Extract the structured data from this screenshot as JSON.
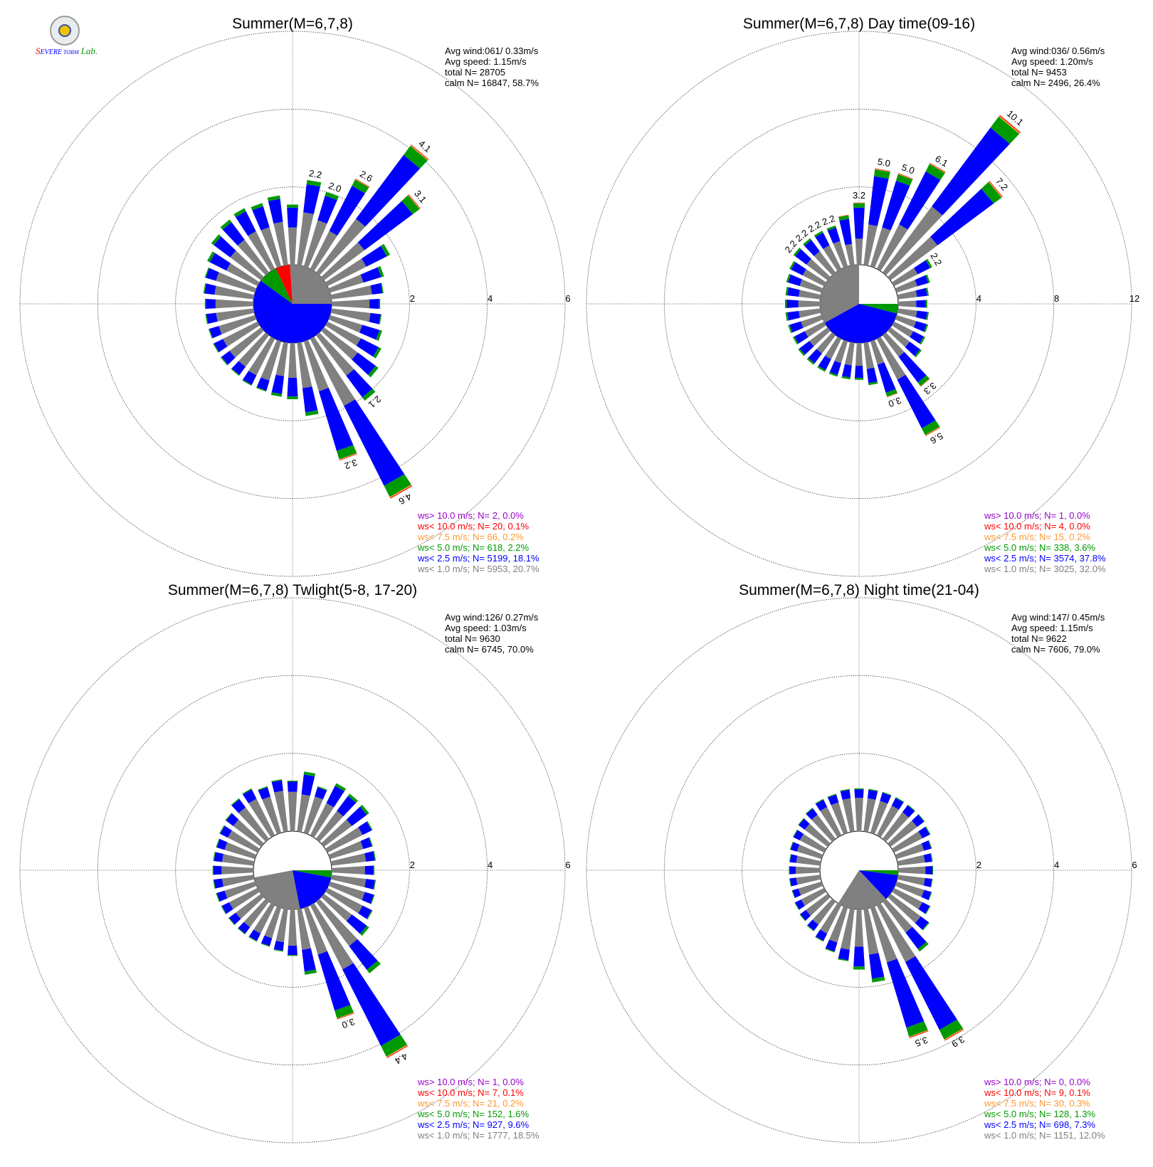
{
  "logo": {
    "text_s": "S",
    "text_severe": "EVERE",
    "text_storm": "TORM",
    "text_lab": "Lab."
  },
  "chart_data": [
    {
      "type": "polar-stacked-bar",
      "title": "Summer(M=6,7,8)",
      "rmax": 6,
      "rticks": [
        2,
        4,
        6
      ],
      "stats": [
        "Avg wind:061/ 0.33m/s",
        "Avg speed: 1.15m/s",
        "total N=      28705",
        "calm N=  16847,  58.7%"
      ],
      "calm_pie": [
        [
          0,
          0.6,
          "#0000ff"
        ],
        [
          0.6,
          0.68,
          "#009900"
        ],
        [
          0.68,
          0.74,
          "#ff0000"
        ],
        [
          0.74,
          1.0,
          "#808080"
        ]
      ],
      "sectors": [
        {
          "dir": 0,
          "total": 1.55,
          "labeled": false
        },
        {
          "dir": 10,
          "total": 2.2,
          "labeled": true
        },
        {
          "dir": 20,
          "total": 2.0,
          "labeled": true
        },
        {
          "dir": 30,
          "total": 2.6,
          "labeled": true
        },
        {
          "dir": 40,
          "total": 4.1,
          "labeled": true
        },
        {
          "dir": 50,
          "total": 3.1,
          "labeled": true
        },
        {
          "dir": 60,
          "total": 1.8,
          "labeled": false
        },
        {
          "dir": 70,
          "total": 1.45,
          "labeled": false
        },
        {
          "dir": 80,
          "total": 1.35,
          "labeled": false
        },
        {
          "dir": 90,
          "total": 1.25,
          "labeled": false
        },
        {
          "dir": 100,
          "total": 1.3,
          "labeled": false
        },
        {
          "dir": 110,
          "total": 1.4,
          "labeled": false
        },
        {
          "dir": 120,
          "total": 1.55,
          "labeled": false
        },
        {
          "dir": 130,
          "total": 1.75,
          "labeled": false
        },
        {
          "dir": 140,
          "total": 2.1,
          "labeled": true
        },
        {
          "dir": 150,
          "total": 4.6,
          "labeled": true
        },
        {
          "dir": 160,
          "total": 3.2,
          "labeled": true
        },
        {
          "dir": 170,
          "total": 1.9,
          "labeled": false
        },
        {
          "dir": 180,
          "total": 1.45,
          "labeled": false
        },
        {
          "dir": 190,
          "total": 1.4,
          "labeled": false
        },
        {
          "dir": 200,
          "total": 1.35,
          "labeled": false
        },
        {
          "dir": 210,
          "total": 1.35,
          "labeled": false
        },
        {
          "dir": 220,
          "total": 1.3,
          "labeled": false
        },
        {
          "dir": 230,
          "total": 1.3,
          "labeled": false
        },
        {
          "dir": 240,
          "total": 1.28,
          "labeled": false
        },
        {
          "dir": 250,
          "total": 1.25,
          "labeled": false
        },
        {
          "dir": 260,
          "total": 1.25,
          "labeled": false
        },
        {
          "dir": 270,
          "total": 1.25,
          "labeled": false
        },
        {
          "dir": 280,
          "total": 1.3,
          "labeled": false
        },
        {
          "dir": 290,
          "total": 1.35,
          "labeled": false
        },
        {
          "dir": 300,
          "total": 1.45,
          "labeled": false
        },
        {
          "dir": 310,
          "total": 1.6,
          "labeled": false
        },
        {
          "dir": 320,
          "total": 1.7,
          "labeled": false
        },
        {
          "dir": 330,
          "total": 1.75,
          "labeled": false
        },
        {
          "dir": 340,
          "total": 1.7,
          "labeled": false
        },
        {
          "dir": 350,
          "total": 1.8,
          "labeled": false
        }
      ],
      "legend": [
        {
          "text": "ws> 10.0 m/s; N=     2,  0.0%",
          "color": "#9900cc"
        },
        {
          "text": "ws< 10.0 m/s; N=    20,  0.1%",
          "color": "#ff0000"
        },
        {
          "text": "ws<  7.5 m/s; N=    66,  0.2%",
          "color": "#ff9933"
        },
        {
          "text": "ws<  5.0 m/s; N=   618,  2.2%",
          "color": "#009900"
        },
        {
          "text": "ws<  2.5 m/s; N=  5199, 18.1%",
          "color": "#0000ff"
        },
        {
          "text": "ws<  1.0 m/s; N=  5953, 20.7%",
          "color": "#808080"
        }
      ]
    },
    {
      "type": "polar-stacked-bar",
      "title": "Summer(M=6,7,8) Day time(09-16)",
      "rmax": 12,
      "rticks": [
        4,
        8,
        12
      ],
      "stats": [
        "Avg wind:036/ 0.56m/s",
        "Avg speed: 1.20m/s",
        "total N=       9453",
        "calm N=   2496,  26.4%"
      ],
      "calm_pie": [
        [
          0,
          0.04,
          "#009900"
        ],
        [
          0.04,
          0.42,
          "#0000ff"
        ],
        [
          0.42,
          0.75,
          "#808080"
        ],
        [
          0.75,
          1.0,
          "#ffffff"
        ]
      ],
      "sectors": [
        {
          "dir": 0,
          "total": 3.2,
          "labeled": true
        },
        {
          "dir": 10,
          "total": 5.0,
          "labeled": true
        },
        {
          "dir": 20,
          "total": 5.0,
          "labeled": true
        },
        {
          "dir": 30,
          "total": 6.1,
          "labeled": true
        },
        {
          "dir": 40,
          "total": 10.1,
          "labeled": true
        },
        {
          "dir": 50,
          "total": 7.2,
          "labeled": true
        },
        {
          "dir": 60,
          "total": 2.2,
          "labeled": true
        },
        {
          "dir": 70,
          "total": 1.8,
          "labeled": false
        },
        {
          "dir": 80,
          "total": 1.6,
          "labeled": false
        },
        {
          "dir": 90,
          "total": 1.5,
          "labeled": false
        },
        {
          "dir": 100,
          "total": 1.6,
          "labeled": false
        },
        {
          "dir": 110,
          "total": 1.7,
          "labeled": false
        },
        {
          "dir": 120,
          "total": 1.8,
          "labeled": false
        },
        {
          "dir": 130,
          "total": 2.0,
          "labeled": false
        },
        {
          "dir": 140,
          "total": 3.3,
          "labeled": true
        },
        {
          "dir": 150,
          "total": 5.6,
          "labeled": true
        },
        {
          "dir": 160,
          "total": 3.0,
          "labeled": true
        },
        {
          "dir": 170,
          "total": 2.2,
          "labeled": false
        },
        {
          "dir": 180,
          "total": 1.9,
          "labeled": false
        },
        {
          "dir": 190,
          "total": 1.9,
          "labeled": false
        },
        {
          "dir": 200,
          "total": 1.9,
          "labeled": false
        },
        {
          "dir": 210,
          "total": 1.9,
          "labeled": false
        },
        {
          "dir": 220,
          "total": 1.9,
          "labeled": false
        },
        {
          "dir": 230,
          "total": 1.9,
          "labeled": false
        },
        {
          "dir": 240,
          "total": 1.8,
          "labeled": false
        },
        {
          "dir": 250,
          "total": 1.8,
          "labeled": false
        },
        {
          "dir": 260,
          "total": 1.8,
          "labeled": false
        },
        {
          "dir": 270,
          "total": 1.8,
          "labeled": false
        },
        {
          "dir": 280,
          "total": 1.8,
          "labeled": false
        },
        {
          "dir": 290,
          "total": 1.9,
          "labeled": false
        },
        {
          "dir": 300,
          "total": 2.0,
          "labeled": false
        },
        {
          "dir": 310,
          "total": 2.2,
          "labeled": true
        },
        {
          "dir": 320,
          "total": 2.2,
          "labeled": true
        },
        {
          "dir": 330,
          "total": 2.2,
          "labeled": true
        },
        {
          "dir": 340,
          "total": 2.2,
          "labeled": true
        },
        {
          "dir": 350,
          "total": 2.6,
          "labeled": false
        }
      ],
      "legend": [
        {
          "text": "ws> 10.0 m/s; N=     1,  0.0%",
          "color": "#9900cc"
        },
        {
          "text": "ws< 10.0 m/s; N=     4,  0.0%",
          "color": "#ff0000"
        },
        {
          "text": "ws<  7.5 m/s; N=    15,  0.2%",
          "color": "#ff9933"
        },
        {
          "text": "ws<  5.0 m/s; N=   338,  3.6%",
          "color": "#009900"
        },
        {
          "text": "ws<  2.5 m/s; N=  3574, 37.8%",
          "color": "#0000ff"
        },
        {
          "text": "ws<  1.0 m/s; N=  3025, 32.0%",
          "color": "#808080"
        }
      ]
    },
    {
      "type": "polar-stacked-bar",
      "title": "Summer(M=6,7,8) Twlight(5-8, 17-20)",
      "rmax": 6,
      "rticks": [
        2,
        4,
        6
      ],
      "stats": [
        "Avg wind:126/ 0.27m/s",
        "Avg speed: 1.03m/s",
        "total N=       9630",
        "calm N=   6745,  70.0%"
      ],
      "calm_pie": [
        [
          0,
          0.03,
          "#009900"
        ],
        [
          0.03,
          0.22,
          "#0000ff"
        ],
        [
          0.22,
          0.47,
          "#808080"
        ],
        [
          0.47,
          1.0,
          "#ffffff"
        ]
      ],
      "sectors": [
        {
          "dir": 0,
          "total": 1.3,
          "labeled": false
        },
        {
          "dir": 10,
          "total": 1.55,
          "labeled": false
        },
        {
          "dir": 20,
          "total": 1.25,
          "labeled": false
        },
        {
          "dir": 30,
          "total": 1.5,
          "labeled": false
        },
        {
          "dir": 40,
          "total": 1.45,
          "labeled": false
        },
        {
          "dir": 50,
          "total": 1.45,
          "labeled": false
        },
        {
          "dir": 60,
          "total": 1.3,
          "labeled": false
        },
        {
          "dir": 70,
          "total": 1.15,
          "labeled": false
        },
        {
          "dir": 80,
          "total": 1.15,
          "labeled": false
        },
        {
          "dir": 90,
          "total": 1.1,
          "labeled": false
        },
        {
          "dir": 100,
          "total": 1.15,
          "labeled": false
        },
        {
          "dir": 110,
          "total": 1.2,
          "labeled": false
        },
        {
          "dir": 120,
          "total": 1.3,
          "labeled": false
        },
        {
          "dir": 130,
          "total": 1.45,
          "labeled": false
        },
        {
          "dir": 140,
          "total": 2.3,
          "labeled": false
        },
        {
          "dir": 150,
          "total": 4.4,
          "labeled": true
        },
        {
          "dir": 160,
          "total": 3.0,
          "labeled": true
        },
        {
          "dir": 170,
          "total": 1.7,
          "labeled": false
        },
        {
          "dir": 180,
          "total": 1.2,
          "labeled": false
        },
        {
          "dir": 190,
          "total": 1.1,
          "labeled": false
        },
        {
          "dir": 200,
          "total": 1.05,
          "labeled": false
        },
        {
          "dir": 210,
          "total": 1.05,
          "labeled": false
        },
        {
          "dir": 220,
          "total": 1.05,
          "labeled": false
        },
        {
          "dir": 230,
          "total": 1.05,
          "labeled": false
        },
        {
          "dir": 240,
          "total": 1.05,
          "labeled": false
        },
        {
          "dir": 250,
          "total": 1.05,
          "labeled": false
        },
        {
          "dir": 260,
          "total": 1.05,
          "labeled": false
        },
        {
          "dir": 270,
          "total": 1.05,
          "labeled": false
        },
        {
          "dir": 280,
          "total": 1.05,
          "labeled": false
        },
        {
          "dir": 290,
          "total": 1.05,
          "labeled": false
        },
        {
          "dir": 300,
          "total": 1.1,
          "labeled": false
        },
        {
          "dir": 310,
          "total": 1.15,
          "labeled": false
        },
        {
          "dir": 320,
          "total": 1.3,
          "labeled": false
        },
        {
          "dir": 330,
          "total": 1.35,
          "labeled": false
        },
        {
          "dir": 340,
          "total": 1.25,
          "labeled": false
        },
        {
          "dir": 350,
          "total": 1.35,
          "labeled": false
        }
      ],
      "legend": [
        {
          "text": "ws> 10.0 m/s; N=     1,  0.0%",
          "color": "#9900cc"
        },
        {
          "text": "ws< 10.0 m/s; N=     7,  0.1%",
          "color": "#ff0000"
        },
        {
          "text": "ws<  7.5 m/s; N=    21,  0.2%",
          "color": "#ff9933"
        },
        {
          "text": "ws<  5.0 m/s; N=   152,  1.6%",
          "color": "#009900"
        },
        {
          "text": "ws<  2.5 m/s; N=   927,  9.6%",
          "color": "#0000ff"
        },
        {
          "text": "ws<  1.0 m/s; N=  1777, 18.5%",
          "color": "#808080"
        }
      ]
    },
    {
      "type": "polar-stacked-bar",
      "title": "Summer(M=6,7,8) Night time(21-04)",
      "rmax": 6,
      "rticks": [
        2,
        4,
        6
      ],
      "stats": [
        "Avg wind:147/ 0.45m/s",
        "Avg speed: 1.15m/s",
        "total N=       9622",
        "calm N=   7606,  79.0%"
      ],
      "calm_pie": [
        [
          0,
          0.02,
          "#009900"
        ],
        [
          0.02,
          0.13,
          "#0000ff"
        ],
        [
          0.13,
          0.34,
          "#808080"
        ],
        [
          0.34,
          1.0,
          "#ffffff"
        ]
      ],
      "sectors": [
        {
          "dir": 0,
          "total": 1.1,
          "labeled": false
        },
        {
          "dir": 10,
          "total": 1.1,
          "labeled": false
        },
        {
          "dir": 20,
          "total": 1.1,
          "labeled": false
        },
        {
          "dir": 30,
          "total": 1.1,
          "labeled": false
        },
        {
          "dir": 40,
          "total": 1.1,
          "labeled": false
        },
        {
          "dir": 50,
          "total": 1.1,
          "labeled": false
        },
        {
          "dir": 60,
          "total": 1.05,
          "labeled": false
        },
        {
          "dir": 70,
          "total": 0.95,
          "labeled": false
        },
        {
          "dir": 80,
          "total": 0.9,
          "labeled": false
        },
        {
          "dir": 90,
          "total": 0.9,
          "labeled": false
        },
        {
          "dir": 100,
          "total": 0.9,
          "labeled": false
        },
        {
          "dir": 110,
          "total": 0.95,
          "labeled": false
        },
        {
          "dir": 120,
          "total": 1.05,
          "labeled": false
        },
        {
          "dir": 130,
          "total": 1.25,
          "labeled": false
        },
        {
          "dir": 140,
          "total": 1.6,
          "labeled": false
        },
        {
          "dir": 150,
          "total": 3.9,
          "labeled": true
        },
        {
          "dir": 160,
          "total": 3.5,
          "labeled": true
        },
        {
          "dir": 170,
          "total": 1.9,
          "labeled": false
        },
        {
          "dir": 180,
          "total": 1.55,
          "labeled": false
        },
        {
          "dir": 190,
          "total": 1.35,
          "labeled": false
        },
        {
          "dir": 200,
          "total": 1.2,
          "labeled": false
        },
        {
          "dir": 210,
          "total": 1.05,
          "labeled": false
        },
        {
          "dir": 220,
          "total": 0.95,
          "labeled": false
        },
        {
          "dir": 230,
          "total": 0.9,
          "labeled": false
        },
        {
          "dir": 240,
          "total": 0.85,
          "labeled": false
        },
        {
          "dir": 250,
          "total": 0.8,
          "labeled": false
        },
        {
          "dir": 260,
          "total": 0.8,
          "labeled": false
        },
        {
          "dir": 270,
          "total": 0.8,
          "labeled": false
        },
        {
          "dir": 280,
          "total": 0.8,
          "labeled": false
        },
        {
          "dir": 290,
          "total": 0.85,
          "labeled": false
        },
        {
          "dir": 300,
          "total": 0.9,
          "labeled": false
        },
        {
          "dir": 310,
          "total": 0.95,
          "labeled": false
        },
        {
          "dir": 320,
          "total": 1.0,
          "labeled": false
        },
        {
          "dir": 330,
          "total": 1.05,
          "labeled": false
        },
        {
          "dir": 340,
          "total": 1.05,
          "labeled": false
        },
        {
          "dir": 350,
          "total": 1.1,
          "labeled": false
        }
      ],
      "legend": [
        {
          "text": "ws> 10.0 m/s; N=     0,  0.0%",
          "color": "#9900cc"
        },
        {
          "text": "ws< 10.0 m/s; N=     9,  0.1%",
          "color": "#ff0000"
        },
        {
          "text": "ws<  7.5 m/s; N=    30,  0.3%",
          "color": "#ff9933"
        },
        {
          "text": "ws<  5.0 m/s; N=   128,  1.3%",
          "color": "#009900"
        },
        {
          "text": "ws<  2.5 m/s; N=   698,  7.3%",
          "color": "#0000ff"
        },
        {
          "text": "ws<  1.0 m/s; N=  1151, 12.0%",
          "color": "#808080"
        }
      ]
    }
  ]
}
